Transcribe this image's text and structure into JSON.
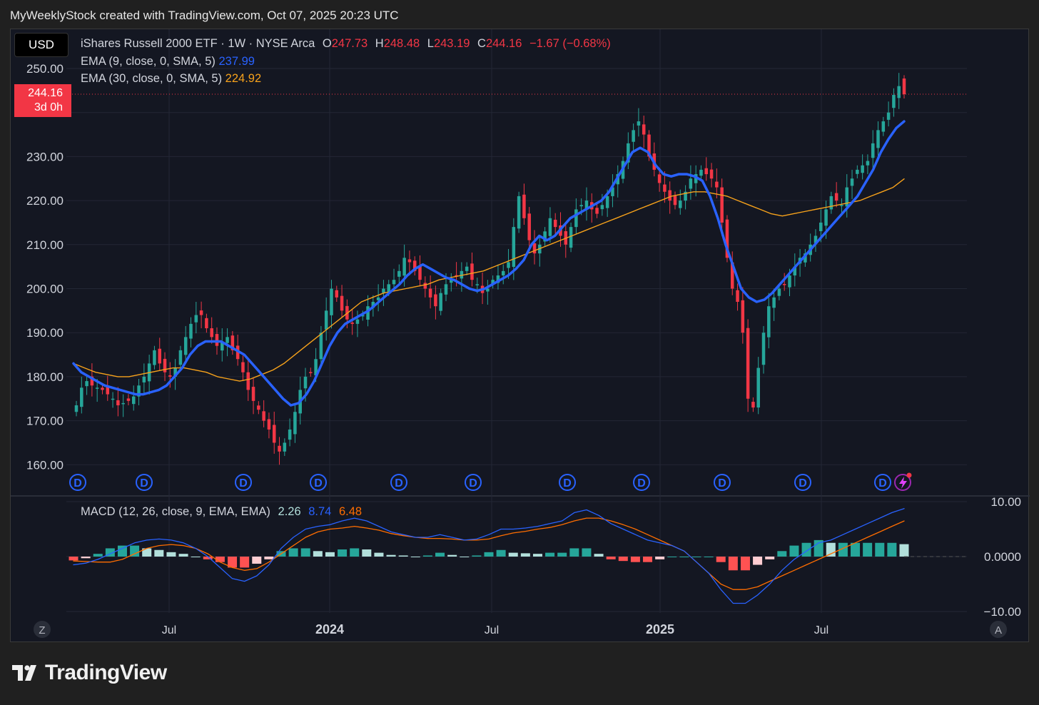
{
  "header": {
    "caption": "MyWeeklyStock created with TradingView.com, Oct 07, 2025 20:23 UTC"
  },
  "symbol": {
    "currency": "USD",
    "name": "iShares Russell 2000 ETF · 1W · NYSE Arca",
    "o_label": "O",
    "o": "247.73",
    "h_label": "H",
    "h": "248.48",
    "l_label": "L",
    "l": "243.19",
    "c_label": "C",
    "c": "244.16",
    "change": "−1.67 (−0.68%)"
  },
  "indicators": {
    "ema9_label": "EMA (9, close, 0, SMA, 5)",
    "ema9_value": "237.99",
    "ema30_label": "EMA (30, close, 0, SMA, 5)",
    "ema30_value": "224.92",
    "macd_label": "MACD (12, 26, close, 9, EMA, EMA)",
    "macd_hist": "2.26",
    "macd_line": "8.74",
    "macd_signal": "6.48"
  },
  "last_price": {
    "price": "244.16",
    "countdown": "3d 0h"
  },
  "brand": {
    "name": "TradingView"
  },
  "corner_buttons": {
    "left": "Z",
    "right": "A"
  },
  "dividend_marker": "D",
  "colors": {
    "up": "#26a69a",
    "down": "#f23645",
    "ema9": "#2962ff",
    "ema30": "#f7a21b",
    "macd_line": "#2962ff",
    "signal_line": "#ff6d00",
    "hist_up_strong": "#26a69a",
    "hist_up_weak": "#b2dfdb",
    "hist_down_strong": "#ff5252",
    "hist_down_weak": "#ffcdd2"
  },
  "chart_data": [
    {
      "type": "candlestick",
      "title": "iShares Russell 2000 ETF · 1W · NYSE Arca",
      "y_axis_ticks": [
        "250.00",
        "230.00",
        "220.00",
        "210.00",
        "200.00",
        "190.00",
        "180.00",
        "170.00",
        "160.00"
      ],
      "x_axis_ticks": [
        "Jul",
        "2024",
        "Jul",
        "2025",
        "Jul"
      ],
      "ylim": [
        155,
        255
      ],
      "grid": true,
      "last_close": 244.16,
      "closes": [
        173.5,
        177.5,
        179,
        178,
        177.5,
        177,
        176,
        175,
        173.5,
        174,
        174.5,
        175.5,
        178,
        180,
        183,
        186,
        183,
        181,
        180,
        182,
        186,
        189,
        192,
        194,
        194,
        191,
        189,
        187,
        188,
        189,
        186,
        184,
        181,
        177,
        174.5,
        172.5,
        170,
        168,
        165,
        163,
        165,
        168,
        172,
        177,
        180,
        181,
        184,
        190,
        195,
        200,
        198,
        195,
        193,
        192,
        193,
        194,
        196,
        197,
        198,
        200,
        201,
        202,
        204,
        207,
        206,
        204,
        202,
        200,
        198,
        196,
        199,
        201,
        202,
        203,
        204,
        205,
        202,
        201,
        199,
        200,
        202,
        203,
        204,
        206,
        214,
        221,
        216,
        211,
        208,
        210,
        213,
        216,
        214,
        212,
        210,
        214,
        218,
        219,
        220,
        218,
        217,
        219,
        221,
        223,
        226,
        229,
        233,
        236,
        238,
        235,
        230,
        227,
        224,
        222,
        220,
        219,
        220,
        222,
        225,
        226,
        227,
        226,
        225,
        223,
        215,
        207,
        200,
        197,
        190,
        175,
        173,
        182,
        190,
        196,
        198,
        200,
        201,
        203,
        205,
        207,
        208,
        210,
        212,
        215,
        218,
        221,
        220,
        219,
        223,
        225,
        227,
        228,
        229,
        233,
        236,
        238,
        240,
        244,
        246,
        244.16
      ],
      "ema9": [
        183,
        181,
        180,
        179,
        178,
        177.5,
        177,
        176.5,
        176,
        176,
        176.5,
        177,
        178,
        180,
        182,
        185,
        187,
        188,
        188,
        188,
        187,
        186,
        185,
        183,
        181,
        179,
        177,
        175,
        173.5,
        174,
        176,
        179,
        183,
        187,
        190,
        192,
        193,
        194,
        195,
        196.5,
        198,
        199.5,
        201,
        203,
        204.5,
        205.5,
        204.5,
        203.5,
        202.5,
        202,
        201,
        200,
        199.5,
        200,
        201,
        202,
        203,
        204.5,
        206.5,
        210,
        212,
        211,
        212,
        214,
        216,
        217,
        218,
        219,
        220,
        222,
        225,
        228,
        231,
        232,
        231,
        228,
        226,
        225.5,
        226,
        226,
        225.5,
        224.5,
        221,
        216,
        210,
        205,
        200,
        198,
        197,
        197.5,
        199,
        201,
        203,
        205,
        207,
        209,
        211,
        213,
        215,
        217,
        219,
        221,
        224,
        227,
        231,
        234,
        236.5,
        237.99
      ],
      "ema30": [
        183,
        182,
        181,
        180.5,
        180,
        180,
        180.5,
        181,
        181.5,
        182,
        182,
        181.5,
        181,
        180,
        179.5,
        179,
        179.5,
        180.5,
        181.5,
        183,
        185,
        187,
        189,
        191,
        193,
        195,
        197,
        198,
        199,
        199.5,
        200,
        200.5,
        201,
        202,
        202.5,
        203,
        203.5,
        204,
        205,
        206,
        207,
        208,
        209,
        210,
        211,
        212,
        213,
        214,
        215,
        216,
        217,
        218,
        219,
        220,
        221,
        221.5,
        222,
        222,
        221.5,
        221,
        220,
        219,
        218,
        217,
        216.5,
        217,
        217.5,
        218,
        218.5,
        219,
        219.5,
        220,
        221,
        222,
        223,
        224.92
      ]
    },
    {
      "type": "histogram+line",
      "title": "MACD (12, 26, close, 9, EMA, EMA)",
      "y_axis_ticks": [
        "10.00",
        "0.0000",
        "−10.00"
      ],
      "ylim": [
        -10.5,
        10.5
      ],
      "grid": true,
      "macd": [
        -1.5,
        -1.2,
        -0.5,
        0.5,
        1.5,
        2.5,
        3,
        3.2,
        3,
        2.5,
        1.5,
        0,
        -2,
        -4,
        -4.5,
        -3.5,
        -1.5,
        1.5,
        3.5,
        5,
        5.5,
        5.8,
        6.5,
        7,
        6.5,
        5.5,
        4.5,
        4,
        3.5,
        3.5,
        4,
        3.5,
        3,
        3.2,
        4,
        5,
        5,
        5.2,
        5.5,
        6,
        6.5,
        8,
        8.5,
        7.5,
        6,
        5,
        4,
        3,
        2.5,
        2,
        1,
        -1,
        -3,
        -6,
        -8.5,
        -8.5,
        -7,
        -5,
        -2.5,
        -0.5,
        1,
        2.5,
        3,
        4,
        5,
        6,
        7,
        8,
        8.74
      ],
      "signal": [
        -0.8,
        -0.9,
        -1,
        -1,
        -0.5,
        0.5,
        1.5,
        2,
        2.2,
        2,
        1.5,
        0.5,
        -1,
        -2,
        -2.5,
        -2.2,
        -1,
        0.5,
        2,
        3.5,
        4.5,
        5,
        5.2,
        5.5,
        5.2,
        4.8,
        4.2,
        3.8,
        3.5,
        3.3,
        3.3,
        3.2,
        3,
        3,
        3.2,
        3.8,
        4.3,
        4.6,
        5,
        5.3,
        5.8,
        6.5,
        7,
        7,
        6.5,
        5.8,
        5,
        4,
        3,
        2,
        1,
        -1,
        -3,
        -5,
        -6,
        -6,
        -5.5,
        -4.5,
        -3.5,
        -2.5,
        -1.5,
        -0.5,
        0.5,
        1.5,
        2.5,
        3.5,
        4.5,
        5.5,
        6.48
      ],
      "histogram_last": 2.26
    }
  ]
}
